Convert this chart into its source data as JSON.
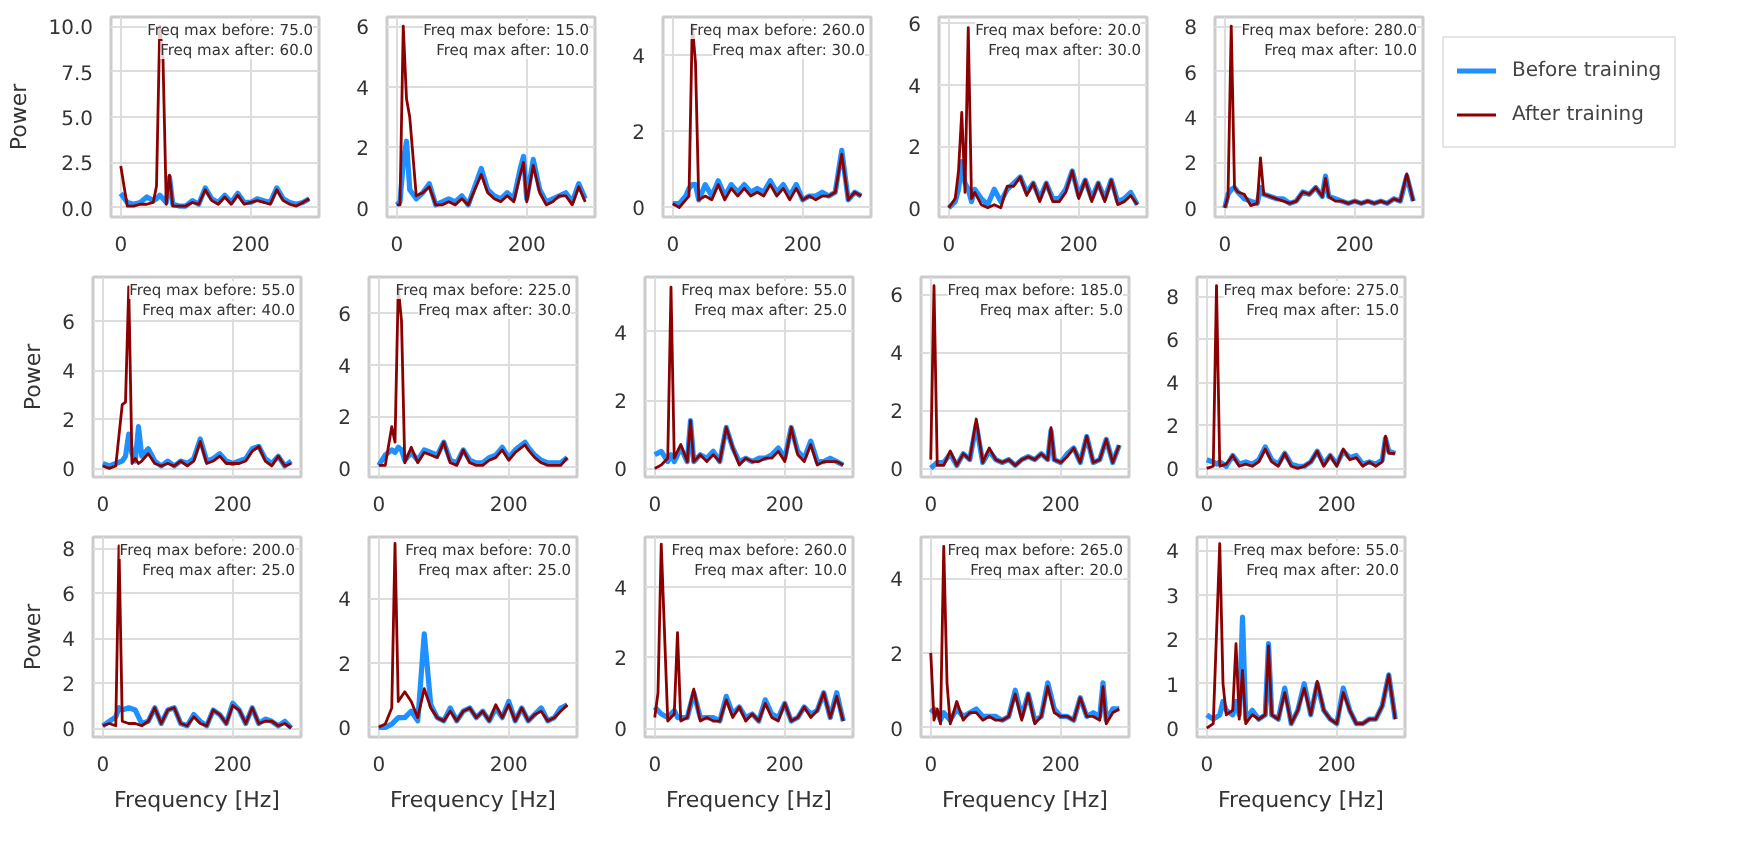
{
  "chart_data": [
    {
      "type": "line",
      "ylabel": "Power",
      "annotations": [
        "Freq max before: 75.0",
        "Freq max after: 60.0"
      ],
      "xlim": [
        -15,
        305
      ],
      "xticks": [
        0,
        200
      ],
      "ylim": [
        -0.5,
        10.5
      ],
      "yticks": [
        {
          "value": 0,
          "label": "0.0"
        },
        {
          "value": 2.5,
          "label": "2.5"
        },
        {
          "value": 5,
          "label": "5.0"
        },
        {
          "value": 7.5,
          "label": "7.5"
        },
        {
          "value": 10,
          "label": "10.0"
        }
      ],
      "grid": true,
      "line_style": "solid",
      "x": [
        0,
        10,
        20,
        30,
        40,
        50,
        55,
        60,
        65,
        70,
        75,
        80,
        90,
        100,
        110,
        120,
        130,
        140,
        150,
        160,
        170,
        180,
        190,
        200,
        210,
        220,
        230,
        240,
        250,
        260,
        270,
        280,
        290
      ],
      "series": [
        {
          "color": "#1e90ff",
          "values": [
            0.8,
            0.3,
            0.2,
            0.3,
            0.6,
            0.4,
            0.5,
            0.7,
            0.5,
            0.3,
            1.7,
            0.2,
            0.1,
            0.1,
            0.4,
            0.2,
            1.1,
            0.5,
            0.3,
            0.7,
            0.3,
            0.8,
            0.3,
            0.3,
            0.5,
            0.4,
            0.3,
            1.1,
            0.5,
            0.3,
            0.2,
            0.3,
            0.5
          ]
        },
        {
          "color": "#8b0000",
          "values": [
            2.3,
            0.1,
            0.1,
            0.2,
            0.2,
            0.3,
            1.2,
            10.0,
            8.2,
            0.2,
            1.8,
            0.1,
            0.1,
            0.1,
            0.3,
            0.2,
            1.0,
            0.4,
            0.2,
            0.6,
            0.2,
            0.7,
            0.2,
            0.3,
            0.4,
            0.3,
            0.2,
            1.0,
            0.4,
            0.2,
            0.1,
            0.3,
            0.5
          ]
        }
      ]
    },
    {
      "type": "line",
      "annotations": [
        "Freq max before: 15.0",
        "Freq max after: 10.0"
      ],
      "xlim": [
        -15,
        305
      ],
      "xticks": [
        0,
        200
      ],
      "ylim": [
        -0.3,
        6.3
      ],
      "yticks": [
        0,
        2,
        4,
        6
      ],
      "grid": true,
      "line_style": "solid",
      "x": [
        0,
        5,
        10,
        15,
        20,
        30,
        40,
        50,
        60,
        70,
        80,
        90,
        100,
        110,
        120,
        130,
        140,
        150,
        160,
        170,
        180,
        190,
        195,
        200,
        210,
        220,
        230,
        240,
        250,
        260,
        270,
        280,
        290
      ],
      "series": [
        {
          "color": "#1e90ff",
          "values": [
            0.1,
            0.2,
            1.5,
            2.2,
            0.6,
            0.3,
            0.5,
            0.8,
            0.1,
            0.2,
            0.3,
            0.2,
            0.4,
            0.1,
            0.7,
            1.3,
            0.6,
            0.4,
            0.3,
            0.5,
            0.3,
            1.3,
            1.7,
            0.3,
            1.6,
            0.6,
            0.2,
            0.3,
            0.4,
            0.5,
            0.2,
            0.8,
            0.3
          ]
        },
        {
          "color": "#8b0000",
          "values": [
            0.1,
            0.1,
            6.0,
            3.6,
            3.0,
            0.4,
            0.5,
            0.7,
            0.1,
            0.1,
            0.2,
            0.1,
            0.3,
            0.1,
            0.6,
            1.1,
            0.5,
            0.3,
            0.2,
            0.4,
            0.2,
            1.1,
            1.5,
            0.2,
            1.4,
            0.5,
            0.1,
            0.2,
            0.4,
            0.4,
            0.1,
            0.7,
            0.2
          ]
        }
      ]
    },
    {
      "type": "line",
      "annotations": [
        "Freq max before: 260.0",
        "Freq max after: 30.0"
      ],
      "xlim": [
        -15,
        305
      ],
      "xticks": [
        0,
        200
      ],
      "ylim": [
        -0.25,
        5.0
      ],
      "yticks": [
        0,
        2,
        4
      ],
      "grid": true,
      "line_style": "solid",
      "x": [
        0,
        10,
        20,
        25,
        30,
        35,
        40,
        50,
        60,
        70,
        80,
        90,
        100,
        110,
        120,
        130,
        140,
        150,
        160,
        170,
        180,
        190,
        200,
        210,
        220,
        230,
        240,
        250,
        260,
        270,
        280,
        290
      ],
      "series": [
        {
          "color": "#1e90ff",
          "values": [
            0.1,
            0.1,
            0.3,
            0.5,
            0.6,
            0.6,
            0.2,
            0.6,
            0.3,
            0.7,
            0.3,
            0.6,
            0.4,
            0.6,
            0.4,
            0.5,
            0.4,
            0.7,
            0.4,
            0.6,
            0.3,
            0.6,
            0.2,
            0.3,
            0.3,
            0.4,
            0.3,
            0.4,
            1.5,
            0.2,
            0.4,
            0.3
          ]
        },
        {
          "color": "#8b0000",
          "values": [
            0.1,
            0.0,
            0.2,
            0.3,
            4.8,
            3.8,
            0.2,
            0.3,
            0.2,
            0.6,
            0.2,
            0.5,
            0.3,
            0.5,
            0.3,
            0.4,
            0.3,
            0.6,
            0.3,
            0.5,
            0.2,
            0.5,
            0.2,
            0.3,
            0.2,
            0.3,
            0.3,
            0.4,
            1.4,
            0.2,
            0.4,
            0.3
          ]
        }
      ]
    },
    {
      "type": "line",
      "annotations": [
        "Freq max before: 20.0",
        "Freq max after: 30.0"
      ],
      "xlim": [
        -15,
        305
      ],
      "xticks": [
        0,
        200
      ],
      "ylim": [
        -0.3,
        6.2
      ],
      "yticks": [
        0,
        2,
        4,
        6
      ],
      "grid": true,
      "line_style": "solid",
      "x": [
        0,
        10,
        15,
        20,
        25,
        30,
        35,
        40,
        50,
        60,
        70,
        80,
        90,
        100,
        110,
        120,
        130,
        140,
        150,
        160,
        170,
        180,
        190,
        200,
        210,
        220,
        230,
        240,
        250,
        260,
        270,
        280,
        290
      ],
      "series": [
        {
          "color": "#1e90ff",
          "values": [
            0.0,
            0.2,
            0.6,
            1.5,
            0.8,
            0.6,
            0.2,
            0.6,
            0.3,
            0.1,
            0.6,
            0.2,
            0.6,
            0.8,
            1.0,
            0.5,
            0.8,
            0.3,
            0.8,
            0.3,
            0.3,
            0.6,
            1.2,
            0.4,
            0.9,
            0.3,
            0.8,
            0.3,
            0.9,
            0.2,
            0.3,
            0.5,
            0.1
          ]
        },
        {
          "color": "#8b0000",
          "values": [
            0.0,
            0.3,
            1.2,
            3.1,
            0.5,
            5.85,
            0.3,
            0.5,
            0.1,
            0.0,
            0.1,
            0.0,
            0.7,
            0.7,
            1.0,
            0.4,
            0.8,
            0.2,
            0.8,
            0.2,
            0.2,
            0.5,
            1.2,
            0.3,
            0.9,
            0.2,
            0.8,
            0.2,
            0.9,
            0.1,
            0.2,
            0.4,
            0.1
          ]
        }
      ]
    },
    {
      "type": "line",
      "annotations": [
        "Freq max before: 280.0",
        "Freq max after: 10.0"
      ],
      "xlim": [
        -15,
        305
      ],
      "xticks": [
        0,
        200
      ],
      "ylim": [
        -0.4,
        8.4
      ],
      "yticks": [
        0,
        2,
        4,
        6,
        8
      ],
      "grid": true,
      "line_style": "solid",
      "legend": "right",
      "x": [
        0,
        5,
        10,
        15,
        20,
        30,
        40,
        50,
        55,
        60,
        70,
        80,
        90,
        100,
        110,
        120,
        130,
        140,
        150,
        155,
        160,
        170,
        180,
        190,
        200,
        210,
        220,
        230,
        240,
        250,
        260,
        270,
        280,
        290
      ],
      "series": [
        {
          "name": "Before training",
          "color": "#1e90ff",
          "values": [
            0.0,
            0.6,
            0.8,
            0.9,
            0.7,
            0.4,
            0.3,
            0.2,
            0.9,
            0.6,
            0.5,
            0.4,
            0.4,
            0.2,
            0.3,
            0.7,
            0.6,
            0.9,
            0.5,
            1.4,
            0.5,
            0.4,
            0.3,
            0.2,
            0.3,
            0.2,
            0.3,
            0.2,
            0.3,
            0.2,
            0.4,
            0.3,
            1.4,
            0.3
          ]
        },
        {
          "name": "After training",
          "color": "#8b0000",
          "values": [
            0.0,
            0.5,
            8.0,
            0.9,
            0.7,
            0.6,
            0.1,
            0.2,
            2.2,
            0.6,
            0.5,
            0.4,
            0.3,
            0.2,
            0.3,
            0.7,
            0.6,
            0.9,
            0.5,
            1.3,
            0.5,
            0.3,
            0.3,
            0.2,
            0.3,
            0.2,
            0.3,
            0.2,
            0.3,
            0.2,
            0.4,
            0.3,
            1.5,
            0.3
          ]
        }
      ]
    },
    {
      "type": "line",
      "ylabel": "Power",
      "annotations": [
        "Freq max before: 55.0",
        "Freq max after: 40.0"
      ],
      "xlim": [
        -15,
        305
      ],
      "xticks": [
        0,
        200
      ],
      "ylim": [
        -0.35,
        7.8
      ],
      "yticks": [
        0,
        2,
        4,
        6
      ],
      "grid": true,
      "line_style": "solid",
      "x": [
        0,
        10,
        20,
        30,
        35,
        40,
        45,
        50,
        55,
        60,
        70,
        80,
        90,
        100,
        110,
        120,
        130,
        140,
        150,
        160,
        170,
        180,
        190,
        200,
        210,
        220,
        230,
        240,
        250,
        260,
        270,
        280,
        290
      ],
      "series": [
        {
          "color": "#1e90ff",
          "values": [
            0.2,
            0.1,
            0.2,
            0.3,
            0.5,
            1.4,
            0.6,
            0.3,
            1.7,
            0.5,
            0.8,
            0.3,
            0.1,
            0.3,
            0.1,
            0.3,
            0.2,
            0.4,
            1.2,
            0.3,
            0.4,
            0.6,
            0.3,
            0.2,
            0.3,
            0.4,
            0.8,
            0.9,
            0.4,
            0.2,
            0.5,
            0.1,
            0.3
          ]
        },
        {
          "color": "#8b0000",
          "values": [
            0.1,
            0.0,
            0.1,
            2.6,
            2.7,
            7.4,
            0.2,
            0.4,
            0.2,
            0.3,
            0.6,
            0.2,
            0.1,
            0.2,
            0.1,
            0.3,
            0.1,
            0.3,
            1.1,
            0.2,
            0.3,
            0.5,
            0.2,
            0.2,
            0.2,
            0.3,
            0.7,
            0.9,
            0.3,
            0.1,
            0.5,
            0.1,
            0.2
          ]
        }
      ]
    },
    {
      "type": "line",
      "annotations": [
        "Freq max before: 225.0",
        "Freq max after: 30.0"
      ],
      "xlim": [
        -15,
        305
      ],
      "xticks": [
        0,
        200
      ],
      "ylim": [
        -0.35,
        7.4
      ],
      "yticks": [
        0,
        2,
        4,
        6
      ],
      "grid": true,
      "line_style": "solid",
      "x": [
        0,
        10,
        20,
        25,
        30,
        35,
        40,
        50,
        60,
        70,
        80,
        90,
        100,
        110,
        120,
        130,
        140,
        150,
        160,
        170,
        180,
        190,
        200,
        210,
        220,
        225,
        230,
        240,
        250,
        260,
        270,
        280,
        290
      ],
      "series": [
        {
          "color": "#1e90ff",
          "values": [
            0.1,
            0.5,
            0.7,
            0.6,
            0.8,
            0.7,
            0.3,
            0.6,
            0.3,
            0.7,
            0.6,
            0.5,
            1.0,
            0.3,
            0.2,
            0.7,
            0.3,
            0.2,
            0.2,
            0.4,
            0.5,
            0.8,
            0.4,
            0.7,
            0.9,
            1.0,
            0.8,
            0.5,
            0.3,
            0.2,
            0.2,
            0.2,
            0.4
          ]
        },
        {
          "color": "#8b0000",
          "values": [
            0.1,
            0.1,
            1.6,
            1.0,
            7.0,
            5.7,
            0.2,
            0.8,
            0.2,
            0.6,
            0.5,
            0.4,
            1.0,
            0.2,
            0.1,
            0.7,
            0.2,
            0.1,
            0.1,
            0.3,
            0.4,
            0.7,
            0.3,
            0.6,
            0.8,
            0.9,
            0.7,
            0.4,
            0.2,
            0.1,
            0.1,
            0.1,
            0.4
          ]
        }
      ]
    },
    {
      "type": "line",
      "annotations": [
        "Freq max before: 55.0",
        "Freq max after: 25.0"
      ],
      "xlim": [
        -15,
        305
      ],
      "xticks": [
        0,
        200
      ],
      "ylim": [
        -0.25,
        5.6
      ],
      "yticks": [
        0,
        2,
        4
      ],
      "grid": true,
      "line_style": "solid",
      "x": [
        0,
        10,
        20,
        25,
        30,
        40,
        50,
        55,
        60,
        70,
        80,
        90,
        100,
        110,
        120,
        130,
        140,
        150,
        160,
        170,
        180,
        190,
        200,
        210,
        220,
        230,
        240,
        250,
        260,
        270,
        280,
        290
      ],
      "series": [
        {
          "color": "#1e90ff",
          "values": [
            0.4,
            0.5,
            0.2,
            0.4,
            0.2,
            0.6,
            0.2,
            1.4,
            0.2,
            0.4,
            0.3,
            0.5,
            0.2,
            1.2,
            0.6,
            0.2,
            0.3,
            0.2,
            0.3,
            0.3,
            0.4,
            0.6,
            0.3,
            1.2,
            0.5,
            0.3,
            0.8,
            0.2,
            0.2,
            0.3,
            0.2,
            0.1
          ]
        },
        {
          "color": "#8b0000",
          "values": [
            0.0,
            0.1,
            0.3,
            5.3,
            0.3,
            0.7,
            0.2,
            1.4,
            0.2,
            0.4,
            0.2,
            0.4,
            0.2,
            1.2,
            0.6,
            0.1,
            0.3,
            0.2,
            0.2,
            0.3,
            0.3,
            0.5,
            0.2,
            1.2,
            0.4,
            0.2,
            0.7,
            0.1,
            0.2,
            0.2,
            0.2,
            0.1
          ]
        }
      ]
    },
    {
      "type": "line",
      "annotations": [
        "Freq max before: 185.0",
        "Freq max after: 5.0"
      ],
      "xlim": [
        -15,
        305
      ],
      "xticks": [
        0,
        200
      ],
      "ylim": [
        -0.3,
        6.6
      ],
      "yticks": [
        0,
        2,
        4,
        6
      ],
      "grid": true,
      "line_style": "solid",
      "x": [
        0,
        5,
        10,
        20,
        30,
        40,
        50,
        60,
        70,
        80,
        90,
        100,
        110,
        120,
        130,
        140,
        150,
        160,
        170,
        180,
        185,
        190,
        200,
        210,
        220,
        230,
        240,
        250,
        260,
        270,
        280,
        290
      ],
      "series": [
        {
          "color": "#1e90ff",
          "values": [
            0.0,
            0.1,
            0.2,
            0.2,
            0.5,
            0.1,
            0.5,
            0.3,
            1.5,
            0.2,
            0.6,
            0.3,
            0.2,
            0.3,
            0.1,
            0.3,
            0.4,
            0.3,
            0.5,
            0.3,
            1.3,
            0.3,
            0.2,
            0.5,
            0.7,
            0.2,
            1.1,
            0.2,
            0.3,
            1.0,
            0.2,
            0.8
          ]
        },
        {
          "color": "#8b0000",
          "values": [
            0.3,
            6.3,
            0.1,
            0.1,
            0.6,
            0.1,
            0.5,
            0.3,
            1.7,
            0.2,
            0.7,
            0.3,
            0.2,
            0.3,
            0.1,
            0.3,
            0.4,
            0.3,
            0.5,
            0.3,
            1.4,
            0.3,
            0.2,
            0.4,
            0.7,
            0.2,
            1.1,
            0.2,
            0.3,
            1.0,
            0.2,
            0.8
          ]
        }
      ]
    },
    {
      "type": "line",
      "annotations": [
        "Freq max before: 275.0",
        "Freq max after: 15.0"
      ],
      "xlim": [
        -15,
        305
      ],
      "xticks": [
        0,
        200
      ],
      "ylim": [
        -0.4,
        8.9
      ],
      "yticks": [
        0,
        2,
        4,
        6,
        8
      ],
      "grid": true,
      "line_style": "solid",
      "x": [
        0,
        10,
        15,
        20,
        30,
        40,
        50,
        60,
        70,
        80,
        90,
        100,
        110,
        120,
        130,
        140,
        150,
        160,
        170,
        180,
        190,
        200,
        210,
        220,
        230,
        240,
        250,
        260,
        270,
        275,
        280,
        290
      ],
      "series": [
        {
          "color": "#1e90ff",
          "values": [
            0.4,
            0.3,
            0.2,
            0.3,
            0.1,
            0.6,
            0.2,
            0.3,
            0.2,
            0.4,
            1.0,
            0.4,
            0.2,
            0.7,
            0.2,
            0.1,
            0.1,
            0.3,
            0.8,
            0.2,
            0.6,
            0.2,
            0.8,
            0.5,
            0.6,
            0.2,
            0.3,
            0.2,
            0.4,
            1.4,
            0.8,
            0.7
          ]
        },
        {
          "color": "#8b0000",
          "values": [
            0.0,
            0.1,
            8.5,
            0.1,
            0.2,
            0.6,
            0.1,
            0.2,
            0.1,
            0.3,
            0.9,
            0.3,
            0.1,
            0.7,
            0.1,
            0.0,
            0.1,
            0.3,
            0.8,
            0.1,
            0.6,
            0.1,
            0.9,
            0.4,
            0.5,
            0.1,
            0.3,
            0.1,
            0.3,
            1.5,
            0.7,
            0.7
          ]
        }
      ]
    },
    {
      "type": "line",
      "xlabel": "Frequency [Hz]",
      "ylabel": "Power",
      "annotations": [
        "Freq max before: 200.0",
        "Freq max after: 25.0"
      ],
      "xlim": [
        -15,
        305
      ],
      "xticks": [
        0,
        200
      ],
      "ylim": [
        -0.4,
        8.5
      ],
      "yticks": [
        0,
        2,
        4,
        6,
        8
      ],
      "grid": true,
      "line_style": "solid",
      "x": [
        0,
        10,
        20,
        25,
        30,
        40,
        50,
        60,
        70,
        80,
        90,
        100,
        110,
        120,
        130,
        140,
        150,
        160,
        170,
        180,
        190,
        200,
        210,
        220,
        230,
        240,
        250,
        260,
        270,
        280,
        290
      ],
      "series": [
        {
          "color": "#1e90ff",
          "values": [
            0.1,
            0.3,
            0.5,
            0.9,
            0.8,
            0.9,
            0.8,
            0.2,
            0.3,
            0.9,
            0.2,
            0.8,
            0.9,
            0.2,
            0.1,
            0.6,
            0.3,
            0.1,
            0.8,
            0.6,
            0.2,
            1.1,
            0.8,
            0.2,
            0.9,
            0.2,
            0.4,
            0.3,
            0.1,
            0.3,
            0.0
          ]
        },
        {
          "color": "#8b0000",
          "values": [
            0.1,
            0.2,
            0.1,
            8.1,
            0.3,
            0.2,
            0.2,
            0.1,
            0.3,
            0.9,
            0.2,
            0.8,
            0.9,
            0.2,
            0.1,
            0.5,
            0.2,
            0.1,
            0.8,
            0.6,
            0.2,
            1.0,
            0.8,
            0.2,
            0.9,
            0.2,
            0.3,
            0.3,
            0.1,
            0.2,
            0.0
          ]
        }
      ]
    },
    {
      "type": "line",
      "xlabel": "Frequency [Hz]",
      "annotations": [
        "Freq max before: 70.0",
        "Freq max after: 25.0"
      ],
      "xlim": [
        -15,
        305
      ],
      "xticks": [
        0,
        200
      ],
      "ylim": [
        -0.3,
        5.9
      ],
      "yticks": [
        0,
        2,
        4
      ],
      "grid": true,
      "line_style": "solid",
      "x": [
        0,
        10,
        20,
        25,
        30,
        40,
        50,
        60,
        70,
        80,
        90,
        100,
        110,
        120,
        130,
        140,
        150,
        160,
        170,
        180,
        190,
        200,
        210,
        220,
        230,
        240,
        250,
        260,
        270,
        280,
        290
      ],
      "series": [
        {
          "color": "#1e90ff",
          "values": [
            0.0,
            0.0,
            0.1,
            0.2,
            0.3,
            0.3,
            0.5,
            0.2,
            2.9,
            0.7,
            0.3,
            0.2,
            0.6,
            0.2,
            0.5,
            0.6,
            0.3,
            0.5,
            0.2,
            0.6,
            0.3,
            0.8,
            0.2,
            0.6,
            0.2,
            0.4,
            0.6,
            0.2,
            0.3,
            0.6,
            0.7
          ]
        },
        {
          "color": "#8b0000",
          "values": [
            0.0,
            0.1,
            0.6,
            5.7,
            0.8,
            1.1,
            0.8,
            0.3,
            1.2,
            0.6,
            0.3,
            0.2,
            0.5,
            0.2,
            0.5,
            0.6,
            0.3,
            0.5,
            0.2,
            0.7,
            0.3,
            0.7,
            0.2,
            0.6,
            0.2,
            0.4,
            0.5,
            0.2,
            0.3,
            0.5,
            0.7
          ]
        }
      ]
    },
    {
      "type": "line",
      "xlabel": "Frequency [Hz]",
      "annotations": [
        "Freq max before: 260.0",
        "Freq max after: 10.0"
      ],
      "xlim": [
        -15,
        305
      ],
      "xticks": [
        0,
        200
      ],
      "ylim": [
        -0.25,
        5.4
      ],
      "yticks": [
        0,
        2,
        4
      ],
      "grid": true,
      "line_style": "solid",
      "x": [
        0,
        5,
        10,
        20,
        30,
        35,
        40,
        50,
        60,
        70,
        80,
        90,
        100,
        110,
        120,
        130,
        140,
        150,
        160,
        170,
        180,
        190,
        200,
        210,
        220,
        230,
        240,
        250,
        260,
        270,
        280,
        290
      ],
      "series": [
        {
          "color": "#1e90ff",
          "values": [
            0.6,
            0.5,
            0.4,
            0.3,
            0.5,
            0.3,
            0.3,
            0.3,
            1.0,
            0.3,
            0.3,
            0.3,
            0.2,
            0.9,
            0.4,
            0.6,
            0.3,
            0.4,
            0.2,
            0.8,
            0.4,
            0.3,
            0.7,
            0.2,
            0.3,
            0.6,
            0.4,
            0.5,
            1.0,
            0.3,
            1.0,
            0.2
          ]
        },
        {
          "color": "#8b0000",
          "values": [
            0.3,
            1.0,
            5.2,
            0.2,
            0.4,
            2.7,
            0.2,
            0.3,
            1.1,
            0.2,
            0.3,
            0.2,
            0.2,
            0.8,
            0.3,
            0.6,
            0.2,
            0.4,
            0.2,
            0.7,
            0.3,
            0.2,
            0.7,
            0.2,
            0.3,
            0.6,
            0.3,
            0.5,
            1.0,
            0.3,
            0.9,
            0.2
          ]
        }
      ]
    },
    {
      "type": "line",
      "xlabel": "Frequency [Hz]",
      "annotations": [
        "Freq max before: 265.0",
        "Freq max after: 20.0"
      ],
      "xlim": [
        -15,
        305
      ],
      "xticks": [
        0,
        200
      ],
      "ylim": [
        -0.25,
        5.1
      ],
      "yticks": [
        0,
        2,
        4
      ],
      "grid": true,
      "line_style": "solid",
      "x": [
        0,
        5,
        10,
        15,
        20,
        25,
        30,
        40,
        50,
        60,
        70,
        80,
        90,
        100,
        110,
        120,
        130,
        140,
        150,
        160,
        170,
        180,
        190,
        200,
        210,
        220,
        230,
        240,
        250,
        260,
        265,
        270,
        280,
        290
      ],
      "series": [
        {
          "color": "#1e90ff",
          "values": [
            0.4,
            0.5,
            0.4,
            0.2,
            0.4,
            0.3,
            0.2,
            0.5,
            0.3,
            0.4,
            0.5,
            0.3,
            0.3,
            0.3,
            0.2,
            0.3,
            1.0,
            0.3,
            0.9,
            0.2,
            0.3,
            1.2,
            0.5,
            0.3,
            0.3,
            0.2,
            0.8,
            0.3,
            0.4,
            0.3,
            1.2,
            0.2,
            0.5,
            0.5
          ]
        },
        {
          "color": "#8b0000",
          "values": [
            2.0,
            0.2,
            0.5,
            0.1,
            4.85,
            1.2,
            0.1,
            0.7,
            0.2,
            0.4,
            0.4,
            0.2,
            0.3,
            0.2,
            0.2,
            0.3,
            0.9,
            0.2,
            0.9,
            0.1,
            0.3,
            1.1,
            0.4,
            0.3,
            0.3,
            0.2,
            0.8,
            0.3,
            0.3,
            0.2,
            1.1,
            0.1,
            0.4,
            0.5
          ]
        }
      ]
    },
    {
      "type": "line",
      "xlabel": "Frequency [Hz]",
      "annotations": [
        "Freq max before: 55.0",
        "Freq max after: 20.0"
      ],
      "xlim": [
        -15,
        305
      ],
      "xticks": [
        0,
        200
      ],
      "ylim": [
        -0.2,
        4.3
      ],
      "yticks": [
        0,
        1,
        2,
        3,
        4
      ],
      "grid": true,
      "line_style": "solid",
      "x": [
        0,
        10,
        20,
        25,
        30,
        40,
        45,
        50,
        55,
        60,
        70,
        80,
        90,
        95,
        100,
        110,
        120,
        130,
        140,
        150,
        160,
        170,
        180,
        190,
        200,
        210,
        220,
        230,
        240,
        250,
        260,
        270,
        280,
        290
      ],
      "series": [
        {
          "color": "#1e90ff",
          "values": [
            0.3,
            0.2,
            0.3,
            0.6,
            0.4,
            0.3,
            0.6,
            0.3,
            2.5,
            0.2,
            0.4,
            0.2,
            0.3,
            1.9,
            0.3,
            0.2,
            0.9,
            0.1,
            0.4,
            1.0,
            0.3,
            1.0,
            0.4,
            0.2,
            0.1,
            0.9,
            0.4,
            0.1,
            0.1,
            0.2,
            0.2,
            0.5,
            1.2,
            0.2
          ]
        },
        {
          "color": "#8b0000",
          "values": [
            0.0,
            0.1,
            4.15,
            1.0,
            0.3,
            0.4,
            1.9,
            0.2,
            1.3,
            0.1,
            0.3,
            0.2,
            0.3,
            1.85,
            0.3,
            0.2,
            0.8,
            0.1,
            0.4,
            0.9,
            0.3,
            1.05,
            0.4,
            0.2,
            0.1,
            0.8,
            0.4,
            0.1,
            0.1,
            0.2,
            0.2,
            0.5,
            1.2,
            0.2
          ]
        }
      ]
    }
  ]
}
